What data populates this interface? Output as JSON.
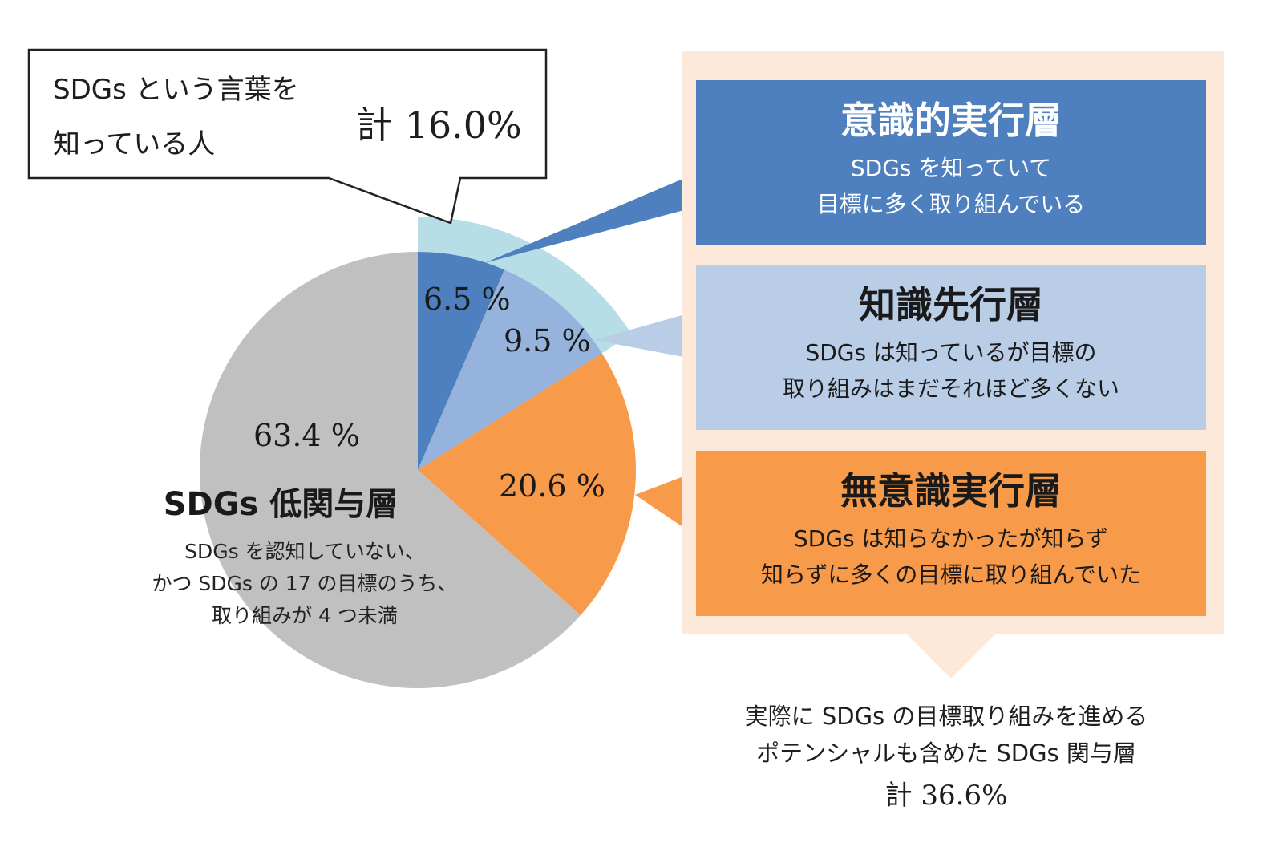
{
  "chart_data": {
    "type": "pie",
    "slices": [
      {
        "key": "conscious",
        "label": "6.5 %",
        "value": 6.5,
        "color": "#4e80c0"
      },
      {
        "key": "knowledge",
        "label": "9.5 %",
        "value": 9.5,
        "color": "#95b3dc"
      },
      {
        "key": "unconscious",
        "label": "20.6 %",
        "value": 20.6,
        "color": "#f79a4a"
      },
      {
        "key": "low",
        "label": "63.4 %",
        "value": 63.4,
        "color": "#c0c0c0"
      }
    ],
    "highlight_color": "#b7dde6"
  },
  "callout": {
    "line1": "SDGs という言葉を",
    "line2": "知っている人",
    "total": "計 16.0%"
  },
  "low_layer": {
    "title": "SDGs 低関与層",
    "desc1": "SDGs を認知していない、",
    "desc2": "かつ SDGs の 17 の目標のうち、",
    "desc3": "取り組みが 4 つ未満"
  },
  "panel": {
    "bg_color": "#fde9d9"
  },
  "boxes": [
    {
      "title": "意識的実行層",
      "desc1": "SDGs を知っていて",
      "desc2": "目標に多く取り組んでいる",
      "bg": "#4e80c0",
      "title_color": "#ffffff",
      "desc_color": "#ffffff"
    },
    {
      "title": "知識先行層",
      "desc1": "SDGs は知っているが目標の",
      "desc2": "取り組みはまだそれほど多くない",
      "bg": "#b9cde6",
      "title_color": "#1a1a1a",
      "desc_color": "#1a1a1a"
    },
    {
      "title": "無意識実行層",
      "desc1": "SDGs は知らなかったが知らず",
      "desc2": "知らずに多くの目標に取り組んでいた",
      "bg": "#f79a4a",
      "title_color": "#1a1a1a",
      "desc_color": "#1a1a1a"
    }
  ],
  "footer": {
    "line1": "実際に SDGs の目標取り組みを進める",
    "line2": "ポテンシャルも含めた SDGs 関与層",
    "total": "計 36.6%"
  }
}
